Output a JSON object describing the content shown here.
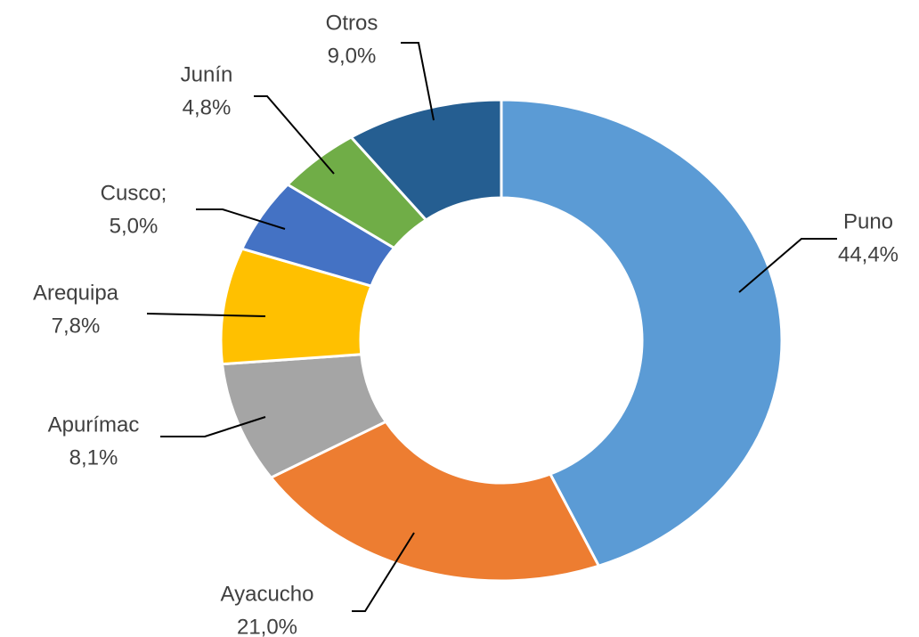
{
  "chart_data": {
    "type": "donut",
    "categories": [
      "Puno",
      "Ayacucho",
      "Apurímac",
      "Arequipa",
      "Cusco;",
      "Junín",
      "Otros"
    ],
    "values": [
      44.4,
      21.0,
      8.1,
      7.8,
      5.0,
      4.8,
      9.0
    ],
    "value_labels": [
      "44,4%",
      "21,0%",
      "8,1%",
      "7,8%",
      "5,0%",
      "4,8%",
      "9,0%"
    ],
    "colors": [
      "#5b9bd5",
      "#ed7d31",
      "#a5a5a5",
      "#ffc000",
      "#4472c4",
      "#70ad47",
      "#255e91"
    ]
  }
}
